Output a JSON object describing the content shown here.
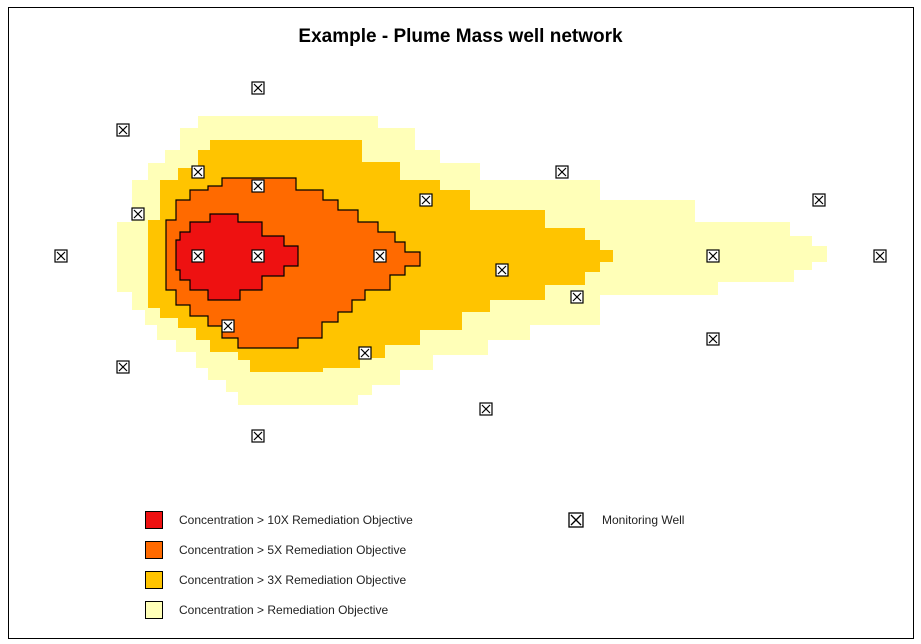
{
  "title": "Example - Plume Mass well network",
  "colors": {
    "gt10x": "#ee1111",
    "gt5x": "#ff6a00",
    "gt3x": "#ffc400",
    "gt1x": "#ffffb8"
  },
  "legend": [
    {
      "label": "Concentration > 10X Remediation Objective",
      "color_key": "gt10x"
    },
    {
      "label": "Concentration > 5X Remediation Objective",
      "color_key": "gt5x"
    },
    {
      "label": "Concentration > 3X Remediation Objective",
      "color_key": "gt3x"
    },
    {
      "label": "Concentration > Remediation Objective",
      "color_key": "gt1x"
    }
  ],
  "well_legend": {
    "label": "Monitoring Well",
    "icon": "monitoring-well-icon"
  }
}
